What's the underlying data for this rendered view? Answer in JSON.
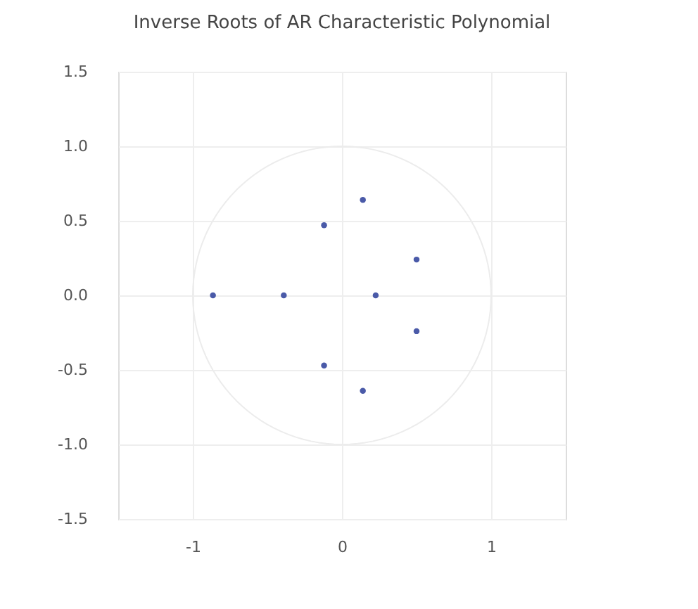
{
  "chart_data": {
    "type": "scatter",
    "title": "Inverse Roots of AR Characteristic Polynomial",
    "series": [
      {
        "color": "#4a5aa8",
        "marker": "circle",
        "x": [
          0.14,
          -0.12,
          0.5,
          -0.865,
          -0.39,
          0.226,
          0.5,
          -0.12,
          0.14
        ],
        "values": [
          0.64,
          0.47,
          0.24,
          0,
          0,
          0,
          -0.24,
          -0.47,
          -0.64
        ]
      }
    ],
    "xlim": [
      -1.5,
      1.5
    ],
    "xticks": [
      -1,
      0,
      1
    ],
    "ylim": [
      -1.5,
      1.5
    ],
    "yticks": [
      {
        "value": -1.5,
        "label": "-1.5"
      },
      {
        "value": -1,
        "label": "-1.0"
      },
      {
        "value": -0.5,
        "label": "-0.5"
      },
      {
        "value": 0,
        "label": "0.0"
      },
      {
        "value": 0.5,
        "label": "0.5"
      },
      {
        "value": 1,
        "label": "1.0"
      },
      {
        "value": 1.5,
        "label": "1.5"
      }
    ],
    "grid": true
  }
}
